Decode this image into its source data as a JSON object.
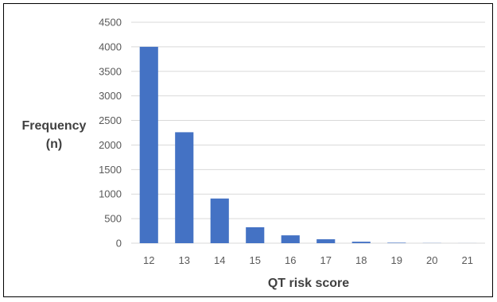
{
  "chart_data": {
    "type": "bar",
    "title": "",
    "xlabel": "QT risk score",
    "ylabel_lines": [
      "Frequency",
      "(n)"
    ],
    "categories": [
      "12",
      "13",
      "14",
      "15",
      "16",
      "17",
      "18",
      "19",
      "20",
      "21"
    ],
    "values": [
      4000,
      2260,
      910,
      325,
      160,
      80,
      30,
      10,
      3,
      1
    ],
    "ylim": [
      0,
      4500
    ],
    "yticks": [
      0,
      500,
      1000,
      1500,
      2000,
      2500,
      3000,
      3500,
      4000,
      4500
    ],
    "grid": true,
    "legend": "none",
    "bar_color": "#4472C4",
    "grid_color": "#D9D9D9"
  }
}
